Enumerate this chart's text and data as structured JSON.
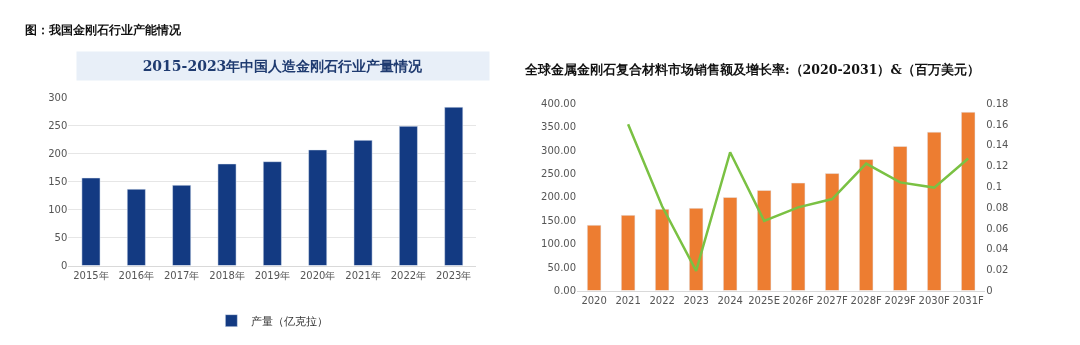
{
  "chart_data": [
    {
      "type": "bar",
      "title": "2015-2023年中国人造金刚石行业产量情况",
      "annotations": [
        "图：我国金刚石行业产能情况"
      ],
      "categories": [
        "2015年",
        "2016年",
        "2017年",
        "2018年",
        "2019年",
        "2020年",
        "2021年",
        "2022年",
        "2023年"
      ],
      "series": [
        {
          "name": "产量（亿克拉）",
          "color": "#133a82",
          "values": [
            156,
            136,
            143,
            181,
            185,
            206,
            223,
            248,
            282
          ]
        }
      ],
      "ylim": [
        0,
        300
      ],
      "yticks": [
        0,
        50,
        100,
        150,
        200,
        250,
        300
      ],
      "grid": "y",
      "legend": "bottom"
    },
    {
      "type": "bar",
      "title": "全球金属金刚石复合材料市场销售额及增长率:（2020-2031）&（百万美元）",
      "categories": [
        "2020",
        "2021",
        "2022",
        "2023",
        "2024",
        "2025E",
        "2026F",
        "2027F",
        "2028F",
        "2029F",
        "2030F",
        "2031F"
      ],
      "series": [
        {
          "color": "#ed7d31",
          "values": [
            139.5,
            160.7,
            173.7,
            175.7,
            199,
            214,
            229.7,
            250,
            280,
            308,
            338.5,
            381
          ]
        },
        {
          "type": "line",
          "axis": "y2",
          "color": "#7ac143",
          "values": [
            null,
            0.16,
            0.081,
            0.019,
            0.133,
            0.067,
            0.08,
            0.088,
            0.122,
            0.104,
            0.099,
            0.127
          ]
        }
      ],
      "ylim": [
        0,
        400
      ],
      "yticks": [
        {
          "value": 0,
          "label": "0.00"
        },
        {
          "value": 50,
          "label": "50.00"
        },
        {
          "value": 100,
          "label": "100.00"
        },
        {
          "value": 150,
          "label": "150.00"
        },
        {
          "value": 200,
          "label": "200.00"
        },
        {
          "value": 250,
          "label": "250.00"
        },
        {
          "value": 300,
          "label": "300.00"
        },
        {
          "value": 350,
          "label": "350.00"
        },
        {
          "value": 400,
          "label": "400.00"
        }
      ],
      "y2lim": [
        0,
        0.18
      ],
      "y2ticks": [
        0,
        0.02,
        0.04,
        0.06,
        0.08,
        0.1,
        0.12,
        0.14,
        0.16,
        0.18
      ],
      "legend": false
    }
  ]
}
